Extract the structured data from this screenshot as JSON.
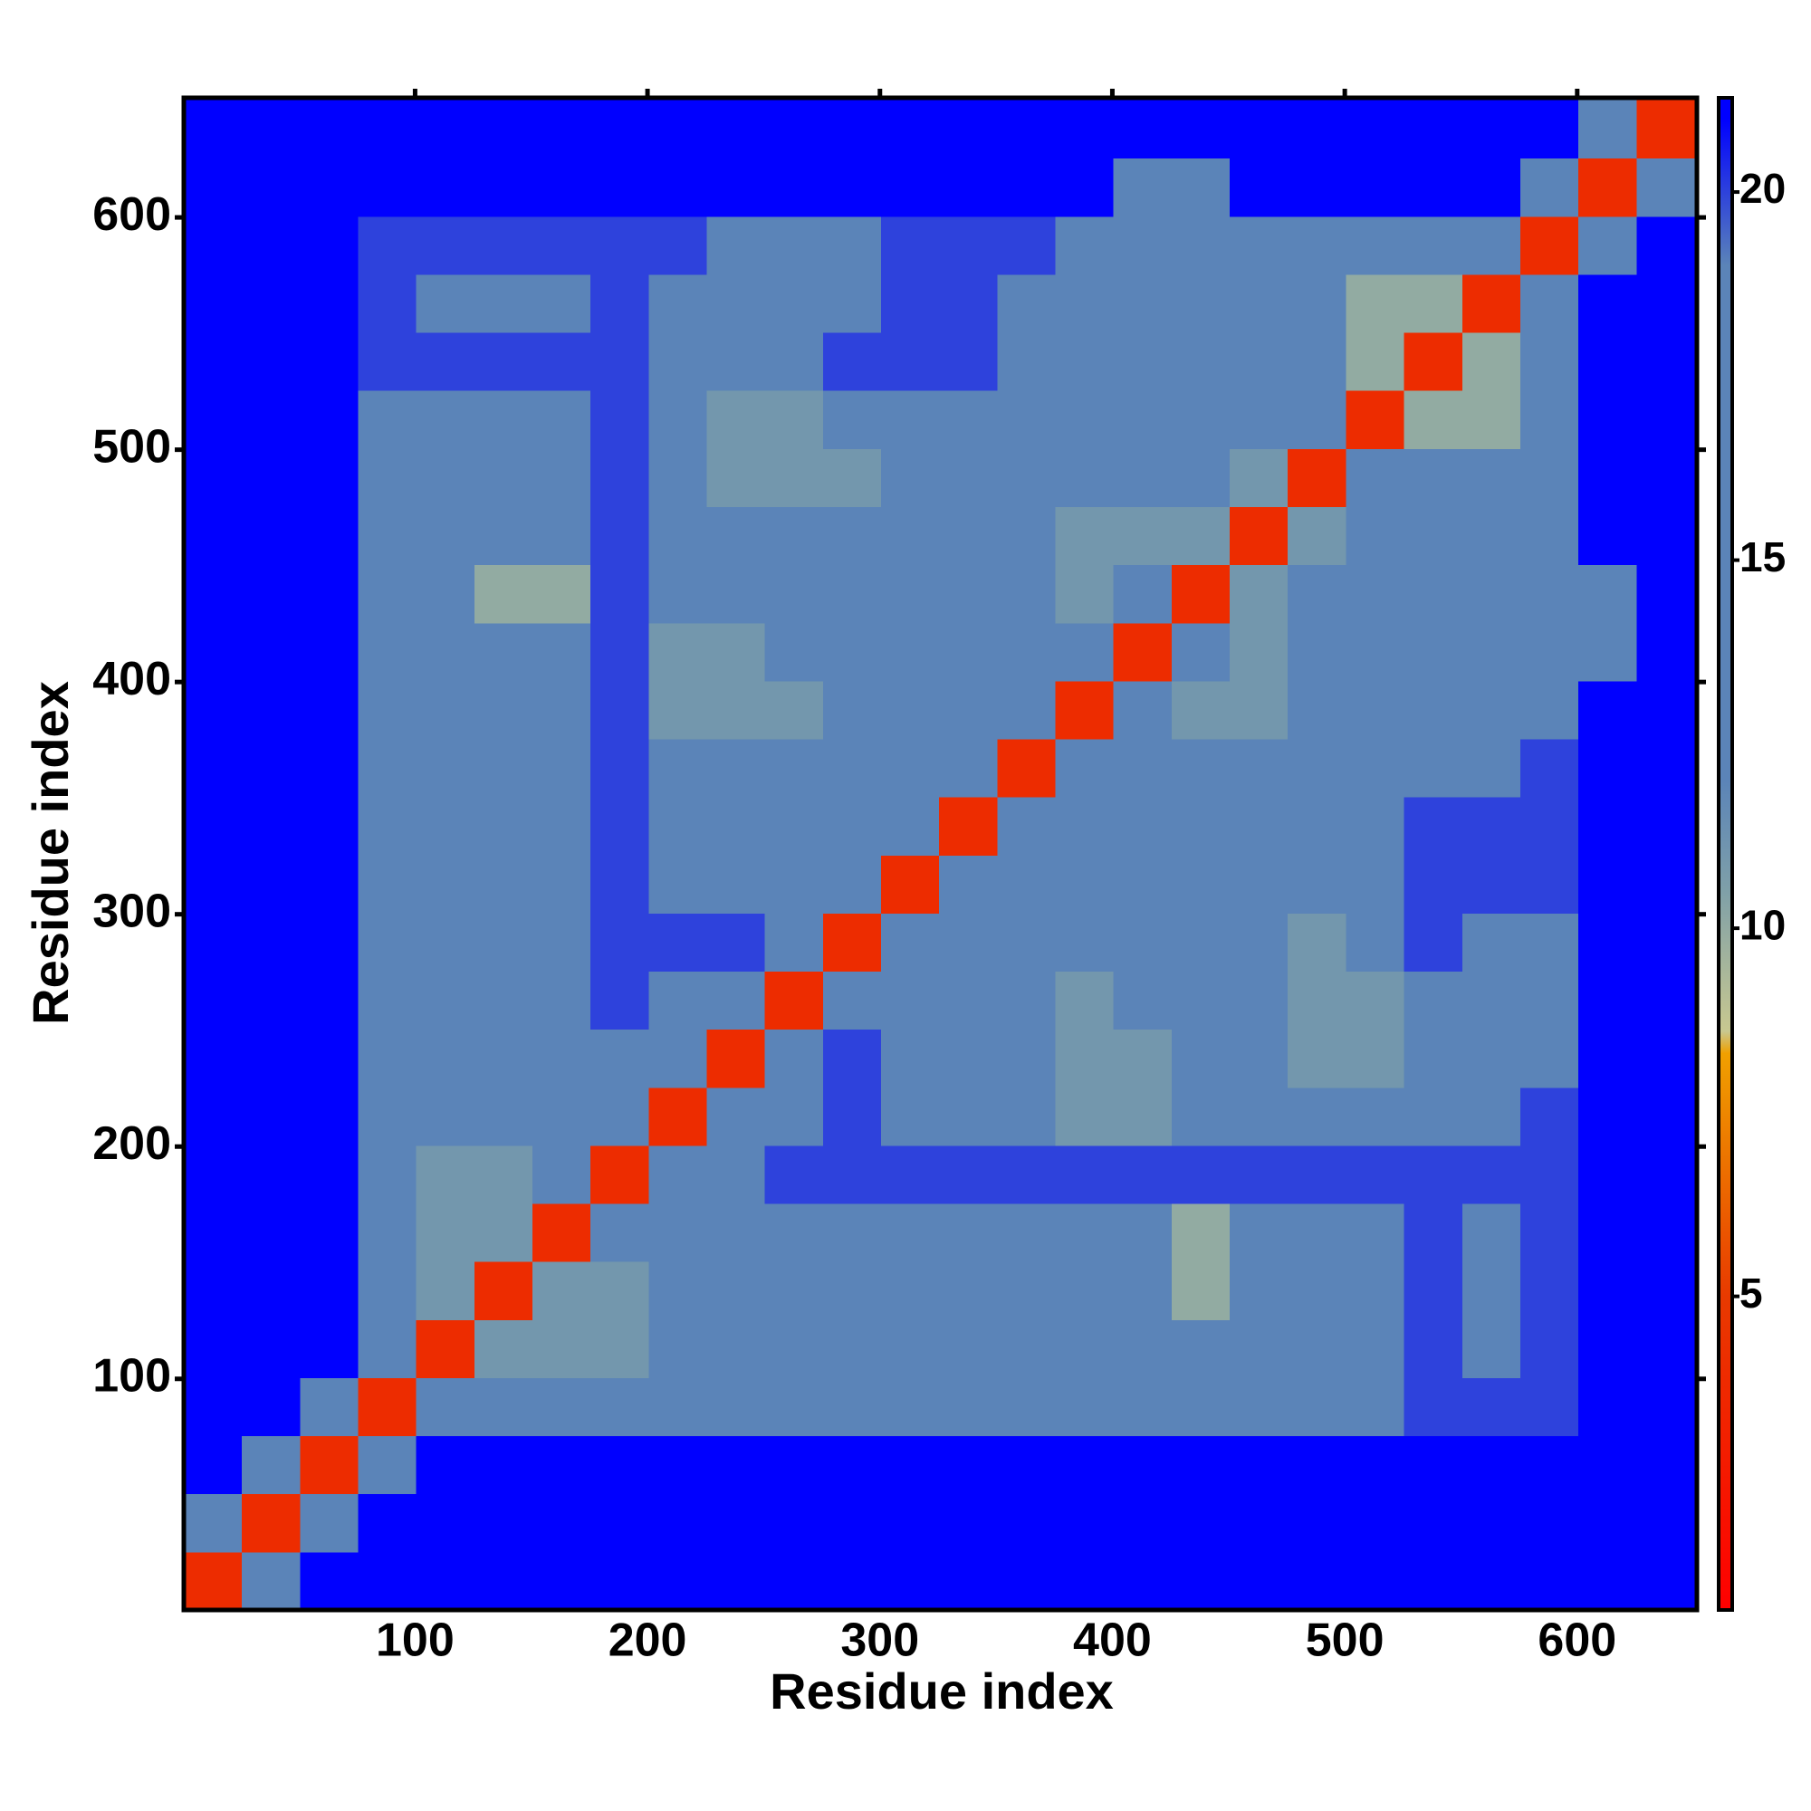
{
  "chart_data": {
    "type": "heatmap",
    "x_label": "Residue index",
    "y_label": "Residue index",
    "xlim": [
      0.5,
      651.5
    ],
    "ylim": [
      0.5,
      651.5
    ],
    "xticks": [
      100,
      200,
      300,
      400,
      500,
      600
    ],
    "yticks": [
      100,
      200,
      300,
      400,
      500,
      600
    ],
    "x_bins": [
      0.5,
      25.5,
      50.5,
      75.5,
      100.5,
      125.5,
      150.5,
      175.5,
      200.5,
      225.5,
      250.5,
      275.5,
      300.5,
      325.5,
      350.5,
      375.5,
      400.5,
      425.5,
      450.5,
      475.5,
      500.5,
      525.5,
      550.5,
      575.5,
      600.5,
      625.5,
      650.5
    ],
    "y_bins": [
      0.5,
      25.5,
      50.5,
      75.5,
      100.5,
      125.5,
      150.5,
      175.5,
      200.5,
      225.5,
      250.5,
      275.5,
      300.5,
      325.5,
      350.5,
      375.5,
      400.5,
      425.5,
      450.5,
      475.5,
      500.5,
      525.5,
      550.5,
      575.5,
      600.5,
      625.5,
      650.5
    ],
    "z": [
      [
        4,
        19,
        21,
        21,
        21,
        21,
        21,
        21,
        21,
        21,
        21,
        21,
        21,
        21,
        21,
        21,
        21,
        21,
        21,
        21,
        21,
        21,
        21,
        21,
        21,
        21
      ],
      [
        19,
        4,
        19,
        21,
        21,
        21,
        21,
        21,
        21,
        21,
        21,
        21,
        21,
        21,
        21,
        21,
        21,
        21,
        21,
        21,
        21,
        21,
        21,
        21,
        21,
        21
      ],
      [
        21,
        19,
        4,
        17,
        21,
        21,
        21,
        21,
        21,
        21,
        21,
        21,
        21,
        21,
        21,
        21,
        21,
        21,
        21,
        21,
        21,
        21,
        21,
        21,
        21,
        21
      ],
      [
        21,
        21,
        17,
        4,
        12,
        18,
        18,
        18,
        18,
        18,
        18,
        18,
        18,
        19,
        18,
        18,
        18,
        18,
        18,
        18,
        18,
        20,
        20,
        20,
        21,
        21
      ],
      [
        21,
        21,
        21,
        12,
        4,
        11,
        11,
        11,
        13,
        12,
        13,
        16,
        16,
        16,
        19,
        12,
        12,
        12,
        12,
        12,
        16,
        20,
        18,
        20,
        21,
        21
      ],
      [
        21,
        21,
        21,
        18,
        11,
        4,
        11,
        11,
        13,
        13,
        13,
        16,
        16,
        16,
        16,
        12,
        12,
        10,
        12,
        12,
        16,
        20,
        19,
        20,
        21,
        21
      ],
      [
        21,
        21,
        21,
        18,
        11,
        11,
        4,
        12,
        16,
        13,
        16,
        16,
        16,
        16,
        16,
        12,
        12,
        10,
        12,
        12,
        16,
        20,
        19,
        20,
        21,
        21
      ],
      [
        21,
        21,
        21,
        18,
        11,
        11,
        12,
        4,
        12,
        16,
        20,
        20,
        20,
        20,
        20,
        20,
        20,
        20,
        20,
        20,
        20,
        20,
        20,
        20,
        21,
        21
      ],
      [
        21,
        21,
        21,
        18,
        13,
        13,
        16,
        12,
        4,
        12,
        16,
        20,
        19,
        16,
        16,
        11,
        11,
        12,
        16,
        16,
        16,
        19,
        19,
        20,
        21,
        21
      ],
      [
        21,
        21,
        21,
        18,
        12,
        13,
        13,
        16,
        12,
        4,
        12,
        20,
        16,
        16,
        16,
        11,
        11,
        12,
        16,
        11,
        11,
        16,
        12,
        19,
        21,
        21
      ],
      [
        21,
        21,
        21,
        18,
        13,
        13,
        16,
        20,
        16,
        12,
        4,
        12,
        13,
        16,
        16,
        11,
        12,
        16,
        16,
        11,
        11,
        16,
        12,
        19,
        21,
        21
      ],
      [
        21,
        21,
        21,
        18,
        16,
        16,
        16,
        20,
        20,
        20,
        12,
        4,
        12,
        13,
        16,
        16,
        16,
        16,
        16,
        11,
        16,
        20,
        16,
        18,
        21,
        21
      ],
      [
        21,
        21,
        21,
        18,
        16,
        16,
        16,
        20,
        19,
        16,
        13,
        12,
        4,
        12,
        19,
        16,
        16,
        16,
        16,
        16,
        16,
        20,
        20,
        20,
        21,
        21
      ],
      [
        21,
        21,
        21,
        19,
        16,
        16,
        16,
        20,
        16,
        16,
        16,
        13,
        12,
        4,
        19,
        16,
        16,
        16,
        16,
        12,
        16,
        20,
        20,
        20,
        21,
        21
      ],
      [
        21,
        21,
        21,
        18,
        19,
        16,
        16,
        20,
        16,
        16,
        16,
        16,
        19,
        19,
        4,
        12,
        13,
        16,
        12,
        16,
        16,
        16,
        17,
        20,
        21,
        21
      ],
      [
        21,
        21,
        21,
        18,
        12,
        12,
        12,
        20,
        11,
        11,
        11,
        16,
        16,
        16,
        12,
        4,
        12,
        11,
        11,
        16,
        16,
        16,
        12,
        18,
        21,
        21
      ],
      [
        21,
        21,
        21,
        18,
        12,
        12,
        12,
        20,
        11,
        11,
        12,
        16,
        16,
        16,
        13,
        12,
        4,
        12,
        11,
        16,
        16,
        16,
        12,
        18,
        19,
        21
      ],
      [
        21,
        21,
        21,
        18,
        12,
        10,
        10,
        20,
        12,
        12,
        16,
        16,
        16,
        16,
        16,
        11,
        12,
        4,
        11,
        16,
        16,
        16,
        16,
        18,
        19,
        21
      ],
      [
        21,
        21,
        21,
        18,
        12,
        12,
        12,
        20,
        16,
        16,
        16,
        16,
        16,
        16,
        12,
        11,
        11,
        11,
        4,
        11,
        16,
        16,
        19,
        18,
        21,
        21
      ],
      [
        21,
        21,
        21,
        18,
        12,
        12,
        12,
        20,
        16,
        11,
        11,
        11,
        16,
        12,
        16,
        16,
        16,
        16,
        11,
        4,
        12,
        12,
        19,
        18,
        21,
        21
      ],
      [
        21,
        21,
        21,
        18,
        16,
        16,
        16,
        20,
        16,
        11,
        11,
        16,
        16,
        16,
        16,
        16,
        16,
        16,
        16,
        12,
        4,
        10,
        10,
        14,
        21,
        21
      ],
      [
        21,
        21,
        21,
        20,
        20,
        20,
        20,
        20,
        19,
        16,
        16,
        20,
        20,
        20,
        16,
        16,
        16,
        16,
        16,
        12,
        10,
        4,
        10,
        14,
        21,
        21
      ],
      [
        21,
        21,
        21,
        20,
        18,
        19,
        19,
        20,
        19,
        12,
        12,
        16,
        20,
        20,
        17,
        12,
        12,
        16,
        19,
        19,
        10,
        10,
        4,
        12,
        21,
        21
      ],
      [
        21,
        21,
        21,
        20,
        20,
        20,
        20,
        20,
        20,
        19,
        19,
        18,
        20,
        20,
        20,
        18,
        18,
        18,
        18,
        18,
        14,
        14,
        12,
        4,
        18,
        21
      ],
      [
        21,
        21,
        21,
        21,
        21,
        21,
        21,
        21,
        21,
        21,
        21,
        21,
        21,
        21,
        21,
        21,
        19,
        19,
        21,
        21,
        21,
        21,
        21,
        18,
        4,
        19
      ],
      [
        21,
        21,
        21,
        21,
        21,
        21,
        21,
        21,
        21,
        21,
        21,
        21,
        21,
        21,
        21,
        21,
        21,
        21,
        21,
        21,
        21,
        21,
        21,
        21,
        19,
        4
      ]
    ],
    "colorbar": {
      "lim": [
        0.74,
        21.28
      ],
      "ticks": [
        5,
        10,
        15,
        20
      ],
      "colorscale": [
        [
          0.74,
          "#ff0000"
        ],
        [
          5,
          "#e83a00"
        ],
        [
          8.3,
          "#f0a000"
        ],
        [
          8.6,
          "#c8c890"
        ],
        [
          10.5,
          "#7fa0a8"
        ],
        [
          12,
          "#5b84b8"
        ],
        [
          19,
          "#5b84b8"
        ],
        [
          21,
          "#0000ff"
        ]
      ]
    }
  }
}
